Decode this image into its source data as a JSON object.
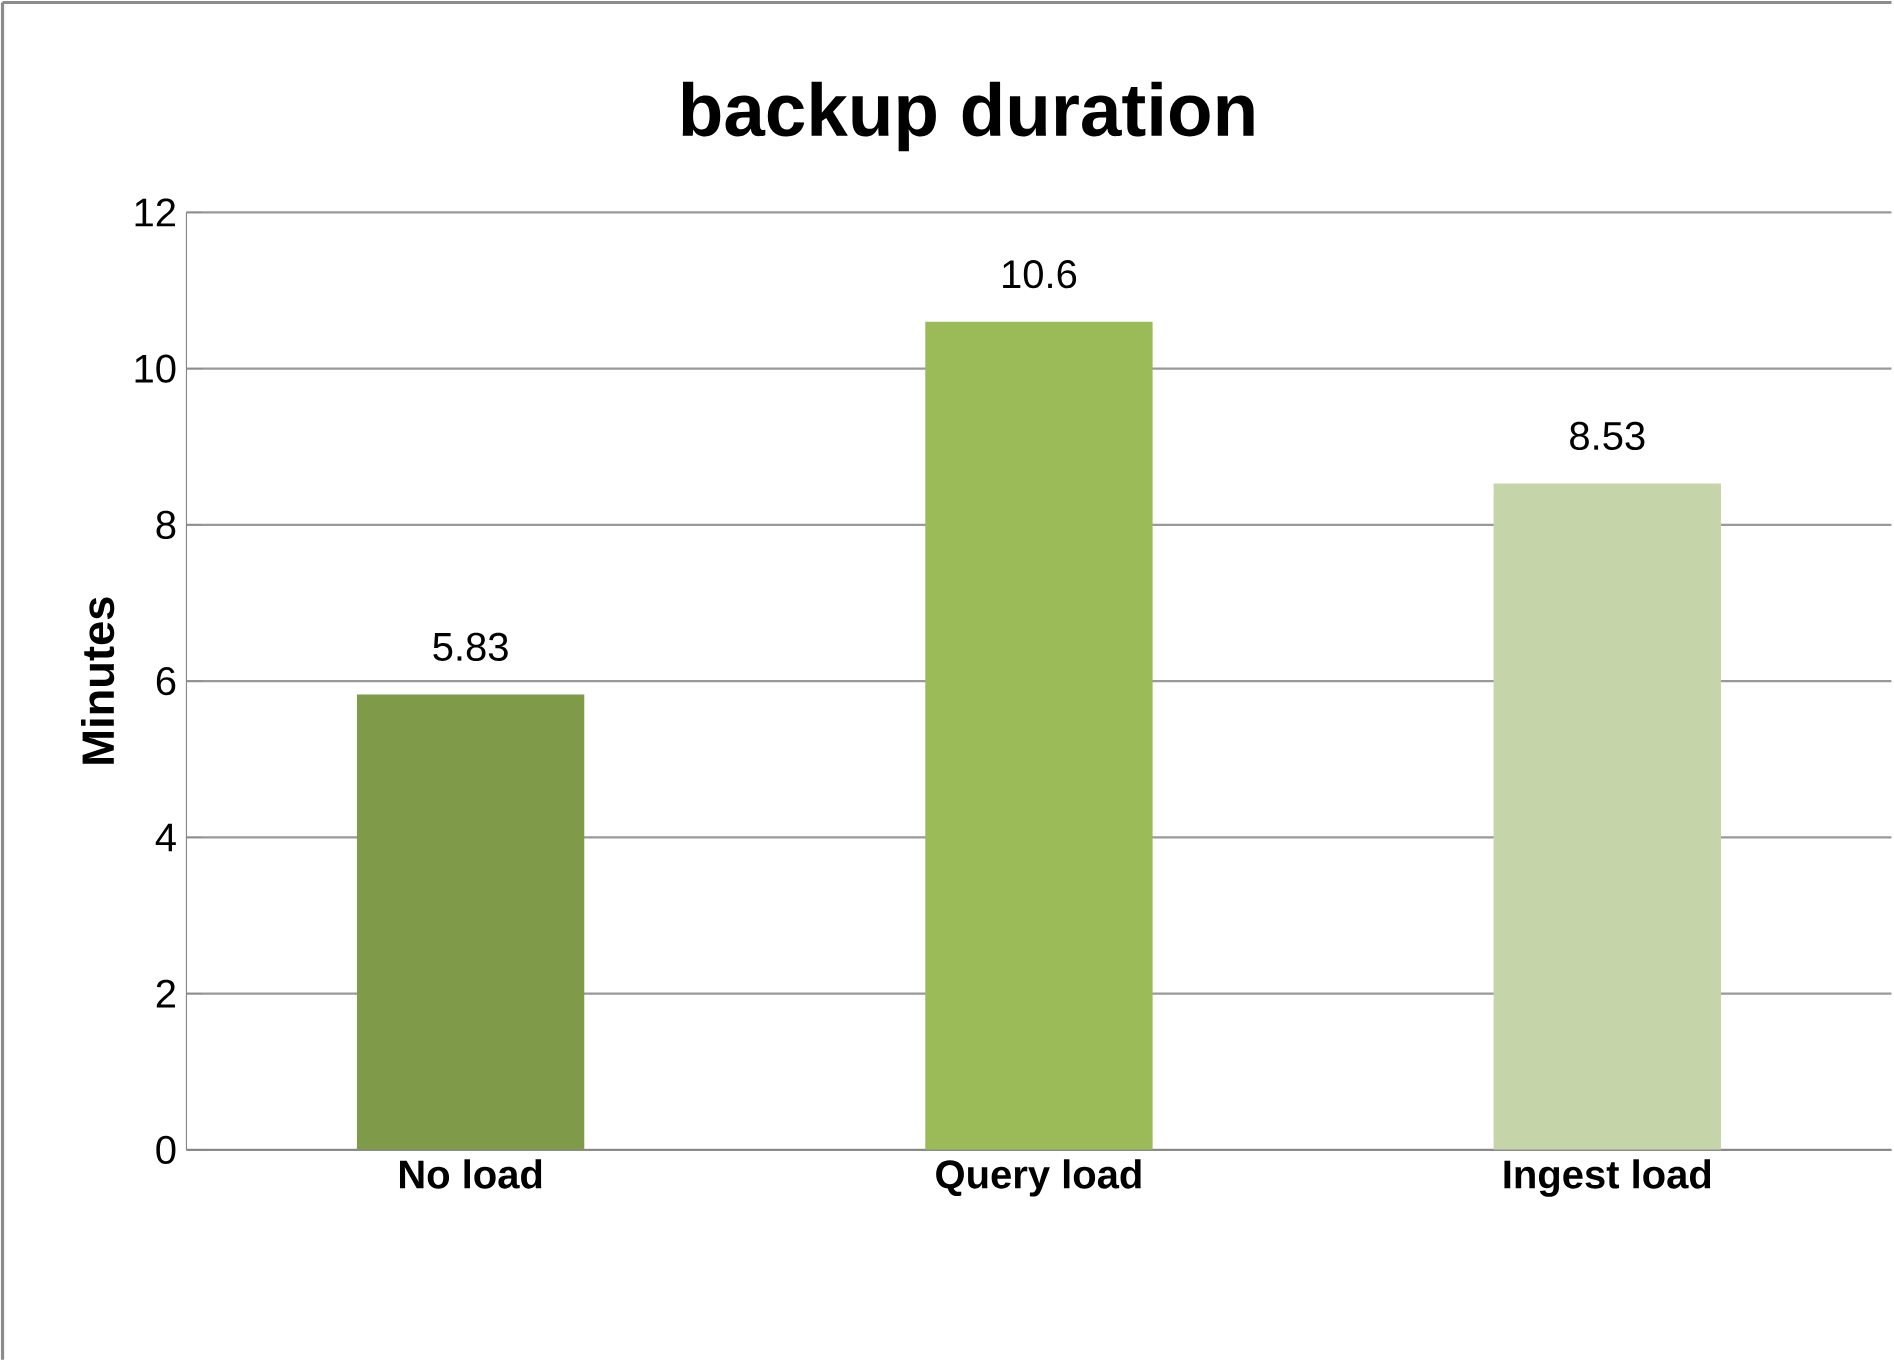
{
  "chart_data": {
    "type": "bar",
    "title": "backup duration",
    "ylabel": "Minutes",
    "categories": [
      "No load",
      "Query load",
      "Ingest load"
    ],
    "values": [
      5.83,
      10.6,
      8.53
    ],
    "colors": [
      "#7f9a48",
      "#9bbb59",
      "#c6d5a9"
    ],
    "ylim": [
      0,
      12
    ],
    "yticks": [
      0,
      2,
      4,
      6,
      8,
      10,
      12
    ],
    "grid": "y",
    "data_labels": true
  }
}
